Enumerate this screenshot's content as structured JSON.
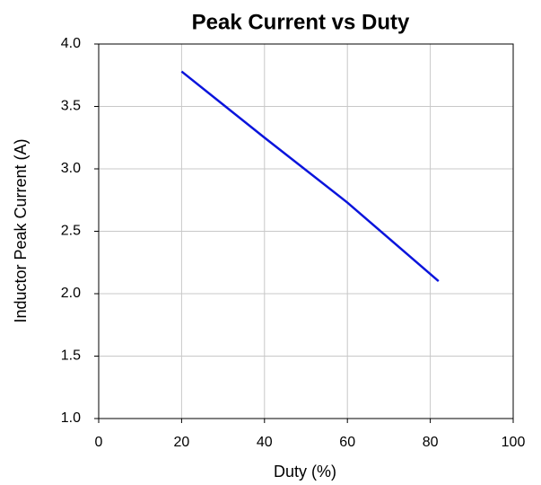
{
  "chart_data": {
    "type": "line",
    "title": "Peak Current vs Duty",
    "xlabel": "Duty (%)",
    "ylabel": "Inductor Peak Current (A)",
    "series": [
      {
        "name": "Inductor Peak Current",
        "color": "#0a14dc",
        "x": [
          20,
          40,
          60,
          82
        ],
        "values": [
          3.78,
          3.25,
          2.73,
          2.1
        ]
      }
    ],
    "xlim": [
      0,
      100
    ],
    "xticks": [
      0,
      20,
      40,
      60,
      80,
      100
    ],
    "ylim": [
      1,
      4
    ],
    "yticks": [
      {
        "value": 1,
        "label": "1.0"
      },
      1.5,
      {
        "value": 2,
        "label": "2.0"
      },
      2.5,
      {
        "value": 3,
        "label": "3.0"
      },
      3.5,
      {
        "value": 4,
        "label": "4.0"
      }
    ],
    "grid": true
  }
}
